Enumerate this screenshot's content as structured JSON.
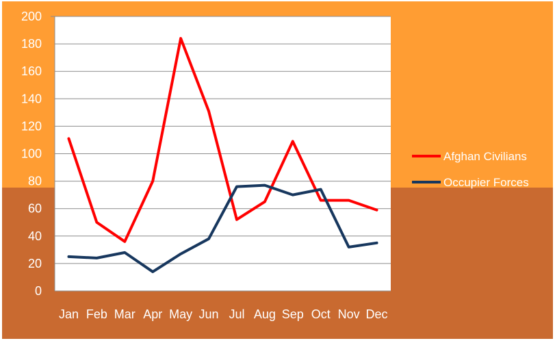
{
  "colors": {
    "background_top": "#FF9D33",
    "background_bottom": "#C96A30",
    "plot_area": "#FFFFFF",
    "gridline": "#8C8C8C",
    "tick_text": "#FFFFFF",
    "legend_text": "#FFFFFF"
  },
  "chart_data": {
    "type": "line",
    "title": "",
    "xlabel": "",
    "ylabel": "",
    "categories": [
      "Jan",
      "Feb",
      "Mar",
      "Apr",
      "May",
      "Jun",
      "Jul",
      "Aug",
      "Sep",
      "Oct",
      "Nov",
      "Dec"
    ],
    "ylim": [
      0,
      200
    ],
    "yticks": [
      0,
      20,
      40,
      60,
      80,
      100,
      120,
      140,
      160,
      180,
      200
    ],
    "grid": true,
    "legend_position": "right",
    "series": [
      {
        "name": "Afghan Civilians",
        "color": "#FF0000",
        "values": [
          111,
          50,
          36,
          80,
          184,
          131,
          52,
          65,
          109,
          66,
          66,
          59
        ]
      },
      {
        "name": "Occupier Forces",
        "color": "#17375E",
        "values": [
          25,
          24,
          28,
          14,
          27,
          38,
          76,
          77,
          70,
          74,
          32,
          35
        ]
      }
    ]
  }
}
